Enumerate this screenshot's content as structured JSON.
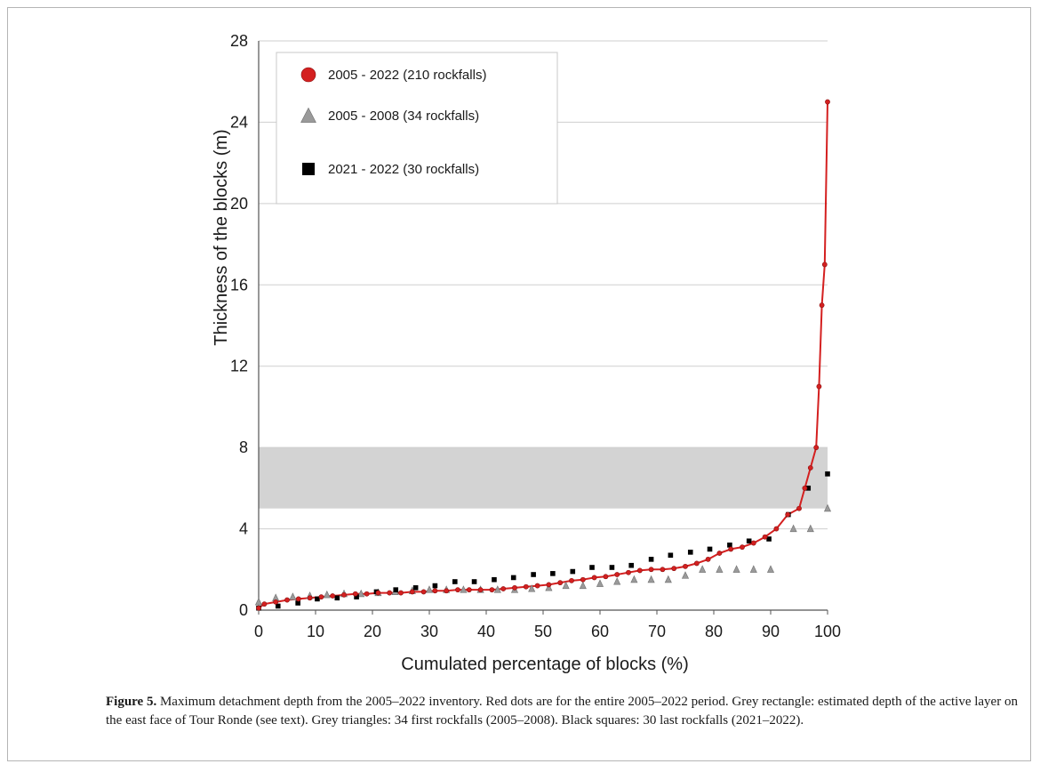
{
  "figure": {
    "caption_label": "Figure 5.",
    "caption_text": " Maximum detachment depth from the 2005–2022 inventory. Red dots are for the entire 2005–2022 period. Grey rectangle: estimated depth of the active layer on the east face of Tour Ronde (see text). Grey triangles: 34 first rockfalls (2005–2008). Black squares: 30 last rockfalls (2021–2022)."
  },
  "chart_data": {
    "type": "scatter",
    "title": "",
    "xlabel": "Cumulated percentage of blocks (%)",
    "ylabel": "Thickness of the blocks (m)",
    "xlim": [
      0,
      100
    ],
    "ylim": [
      0,
      28
    ],
    "xticks": [
      0,
      10,
      20,
      30,
      40,
      50,
      60,
      70,
      80,
      90,
      100
    ],
    "yticks": [
      0,
      4,
      8,
      12,
      16,
      20,
      24,
      28
    ],
    "grid": "horizontal",
    "legend_position": "top-left",
    "shaded_band": {
      "y_from": 5,
      "y_to": 8,
      "color": "#d3d3d3"
    },
    "series": [
      {
        "name": "2005 - 2022 (210 rockfalls)",
        "marker": "circle",
        "color": "#d42020",
        "line": true,
        "x": [
          0,
          1,
          3,
          5,
          7,
          9,
          11,
          13,
          15,
          17,
          19,
          21,
          23,
          25,
          27,
          29,
          31,
          33,
          35,
          37,
          39,
          41,
          43,
          45,
          47,
          49,
          51,
          53,
          55,
          57,
          59,
          61,
          63,
          65,
          67,
          69,
          71,
          73,
          75,
          77,
          79,
          81,
          83,
          85,
          87,
          89,
          91,
          93,
          95,
          96,
          97,
          98,
          98.5,
          99,
          99.5,
          100
        ],
        "values": [
          0.1,
          0.3,
          0.4,
          0.5,
          0.55,
          0.6,
          0.65,
          0.7,
          0.75,
          0.8,
          0.8,
          0.85,
          0.85,
          0.85,
          0.9,
          0.9,
          0.95,
          0.95,
          1.0,
          1.0,
          1.0,
          1.0,
          1.05,
          1.1,
          1.15,
          1.2,
          1.25,
          1.35,
          1.45,
          1.5,
          1.6,
          1.65,
          1.75,
          1.85,
          1.95,
          2.0,
          2.0,
          2.05,
          2.15,
          2.3,
          2.5,
          2.8,
          3.0,
          3.1,
          3.3,
          3.6,
          4.0,
          4.7,
          5.0,
          6.0,
          7.0,
          8.0,
          11.0,
          15.0,
          17.0,
          25.0
        ]
      },
      {
        "name": "2005 - 2008 (34 rockfalls)",
        "marker": "triangle",
        "color": "#9a9a9a",
        "line": false,
        "x": [
          0,
          3,
          6,
          9,
          12,
          15,
          18,
          21,
          24,
          27,
          30,
          33,
          36,
          39,
          42,
          45,
          48,
          51,
          54,
          57,
          60,
          63,
          66,
          69,
          72,
          75,
          78,
          81,
          84,
          87,
          90,
          94,
          97,
          100
        ],
        "values": [
          0.4,
          0.6,
          0.65,
          0.7,
          0.75,
          0.8,
          0.8,
          0.85,
          0.9,
          0.95,
          1.0,
          1.0,
          1.0,
          1.0,
          1.0,
          1.0,
          1.05,
          1.1,
          1.2,
          1.2,
          1.3,
          1.4,
          1.5,
          1.5,
          1.5,
          1.7,
          2.0,
          2.0,
          2.0,
          2.0,
          2.0,
          4.0,
          4.0,
          5.0
        ]
      },
      {
        "name": "2021 - 2022 (30 rockfalls)",
        "marker": "square",
        "color": "#000000",
        "line": false,
        "x": [
          0,
          3.4,
          6.9,
          10.3,
          13.8,
          17.2,
          20.7,
          24.1,
          27.6,
          31.0,
          34.5,
          37.9,
          41.4,
          44.8,
          48.3,
          51.7,
          55.2,
          58.6,
          62.1,
          65.5,
          69.0,
          72.4,
          75.9,
          79.3,
          82.8,
          86.2,
          89.7,
          93.1,
          96.6,
          100
        ],
        "values": [
          0.1,
          0.2,
          0.35,
          0.55,
          0.6,
          0.65,
          0.9,
          1.0,
          1.1,
          1.2,
          1.4,
          1.4,
          1.5,
          1.6,
          1.75,
          1.8,
          1.9,
          2.1,
          2.1,
          2.2,
          2.5,
          2.7,
          2.85,
          3.0,
          3.2,
          3.4,
          3.5,
          4.7,
          6.0,
          6.7
        ]
      }
    ]
  }
}
